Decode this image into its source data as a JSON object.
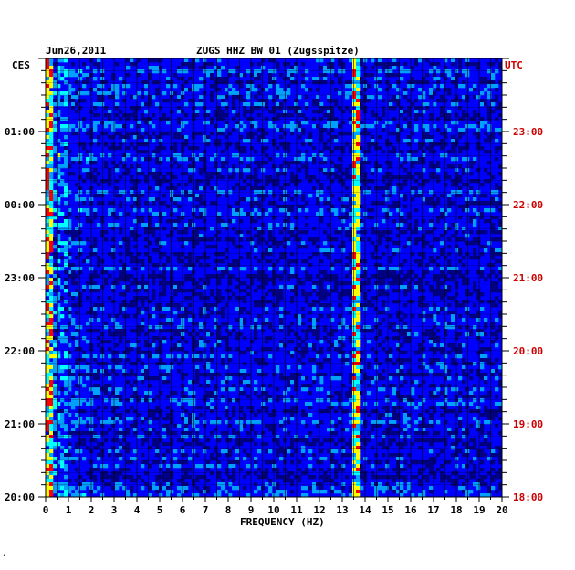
{
  "header": {
    "date": "Jun26,2011",
    "station": "ZUGS HHZ BW 01 (Zugsspitze)",
    "left_tz": "CES",
    "right_tz": "UTC"
  },
  "footer": {
    "mark": "′"
  },
  "chart_data": {
    "type": "heatmap",
    "title": "ZUGS HHZ BW 01 (Zugsspitze)",
    "xlabel": "FREQUENCY (HZ)",
    "ylabel": "",
    "x_ticks": [
      "0",
      "1",
      "2",
      "3",
      "4",
      "5",
      "6",
      "7",
      "8",
      "9",
      "10",
      "11",
      "12",
      "13",
      "14",
      "15",
      "16",
      "17",
      "18",
      "19",
      "20"
    ],
    "xlim": [
      0,
      20
    ],
    "left_time_labels": [
      "01:00",
      "00:00",
      "23:00",
      "22:00",
      "21:00",
      "20:00"
    ],
    "right_time_labels": [
      "23:00",
      "22:00",
      "21:00",
      "20:00",
      "19:00",
      "18:00"
    ],
    "time_range_utc": [
      "18:00",
      "24:00"
    ],
    "colormap": [
      "#000080",
      "#0000ff",
      "#00a0ff",
      "#00ffff",
      "#ffff00",
      "#ff0000"
    ],
    "features": [
      {
        "name": "low-frequency energy",
        "freq_range": [
          0,
          1
        ]
      },
      {
        "name": "narrow band line",
        "freq_range": [
          13.4,
          13.8
        ]
      }
    ],
    "grid": true
  }
}
